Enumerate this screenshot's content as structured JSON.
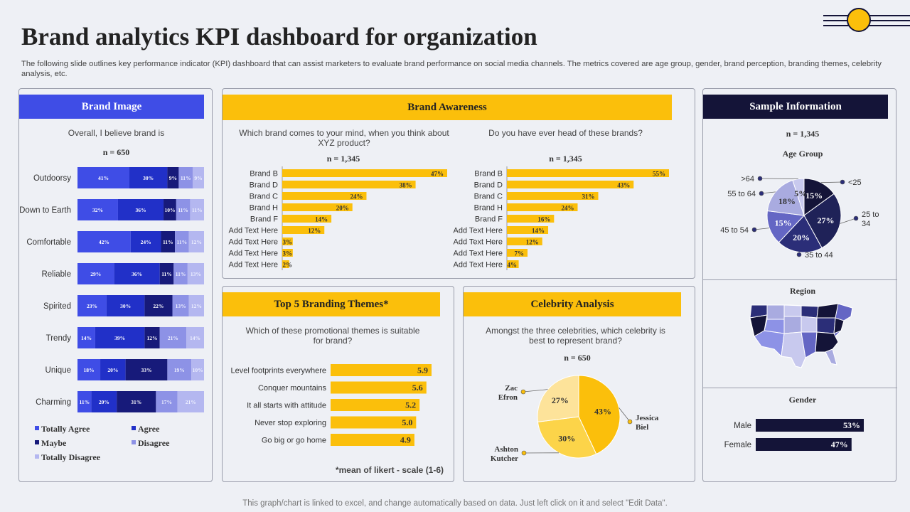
{
  "title": "Brand analytics KPI dashboard for organization",
  "subtitle": "The following slide outlines key performance indicator (KPI) dashboard that can assist marketers to evaluate brand performance on social media channels. The metrics covered are age group, gender, brand perception, branding themes, celebrity analysis, etc.",
  "footer": "This graph/chart is linked to excel, and change automatically based on data. Just left click on it and select \"Edit Data\".",
  "colors": {
    "blue": "#3f4de6",
    "yellow": "#fbbf0b",
    "navy": "#141438",
    "bg": "#eef0f5"
  },
  "brand_image": {
    "header": "Brand Image",
    "question": "Overall, I believe brand is",
    "n": "n = 650",
    "legend": [
      "Totally Agree",
      "Agree",
      "Maybe",
      "Disagree",
      "Totally Disagree"
    ]
  },
  "brand_awareness": {
    "header": "Brand Awareness",
    "q1": "Which brand comes to your mind, when you think about XYZ  product?",
    "q2": "Do you have ever head of these brands?",
    "n1": "n = 1,345",
    "n2": "n = 1,345"
  },
  "themes": {
    "header": "Top 5 Branding Themes*",
    "question": "Which of these promotional themes is suitable for brand?",
    "note": "*mean of likert - scale (1-6)"
  },
  "celebrity": {
    "header": "Celebrity Analysis",
    "question": "Amongst the three celebrities, which celebrity is best to represent brand?",
    "n": "n = 650"
  },
  "sample": {
    "header": "Sample Information",
    "n": "n = 1,345",
    "age_title": "Age Group",
    "region_title": "Region",
    "gender_title": "Gender"
  },
  "chart_data": [
    {
      "id": "brand_image",
      "type": "bar",
      "stacked": true,
      "orientation": "horizontal",
      "title": "Overall, I believe brand is",
      "categories": [
        "Outdoorsy",
        "Down to Earth",
        "Comfortable",
        "Reliable",
        "Spirited",
        "Trendy",
        "Unique",
        "Charming"
      ],
      "series": [
        {
          "name": "Totally Agree",
          "color": "#3f4de6",
          "values": [
            41,
            32,
            42,
            29,
            23,
            14,
            18,
            11
          ]
        },
        {
          "name": "Agree",
          "color": "#2130c8",
          "values": [
            30,
            36,
            24,
            36,
            30,
            39,
            20,
            20
          ]
        },
        {
          "name": "Maybe",
          "color": "#171a7a",
          "values": [
            9,
            10,
            11,
            11,
            22,
            12,
            33,
            31
          ]
        },
        {
          "name": "Disagree",
          "color": "#8d92e6",
          "values": [
            11,
            11,
            11,
            11,
            13,
            21,
            19,
            17
          ]
        },
        {
          "name": "Totally Disagree",
          "color": "#b4b7f0",
          "values": [
            9,
            11,
            12,
            13,
            12,
            14,
            10,
            21
          ]
        }
      ]
    },
    {
      "id": "awareness_top",
      "type": "bar",
      "orientation": "horizontal",
      "title": "Which brand comes to your mind, when you think about XYZ  product?",
      "categories": [
        "Brand B",
        "Brand D",
        "Brand C",
        "Brand H",
        "Brand F",
        "Add Text Here",
        "Add Text Here",
        "Add Text Here",
        "Add Text Here"
      ],
      "values": [
        47,
        38,
        24,
        20,
        14,
        12,
        3,
        3,
        2
      ],
      "unit": "%",
      "color": "#fbbf0b",
      "xlim": [
        0,
        47
      ]
    },
    {
      "id": "awareness_heard",
      "type": "bar",
      "orientation": "horizontal",
      "title": "Do you have ever head of these brands?",
      "categories": [
        "Brand B",
        "Brand D",
        "Brand C",
        "Brand H",
        "Brand F",
        "Add Text Here",
        "Add Text Here",
        "Add Text Here",
        "Add Text Here"
      ],
      "values": [
        55,
        43,
        31,
        24,
        16,
        14,
        12,
        7,
        4
      ],
      "unit": "%",
      "color": "#fbbf0b",
      "xlim": [
        0,
        55
      ]
    },
    {
      "id": "themes",
      "type": "bar",
      "orientation": "horizontal",
      "title": "Which of these promotional themes is suitable for brand?",
      "categories": [
        "Level footprints everywhere",
        "Conquer mountains",
        "It all starts with attitude",
        "Never stop exploring",
        "Go big or go home"
      ],
      "values": [
        5.9,
        5.6,
        5.2,
        5.0,
        4.9
      ],
      "color": "#fbbf0b",
      "xlim": [
        0,
        5.9
      ]
    },
    {
      "id": "celebrity",
      "type": "pie",
      "title": "Amongst the three celebrities, which celebrity is best to represent brand?",
      "labels": [
        "Jessica Biel",
        "Ashton Kutcher",
        "Zac Efron"
      ],
      "values": [
        43,
        30,
        27
      ],
      "colors": [
        "#fbbf0b",
        "#fcd449",
        "#fde39a"
      ]
    },
    {
      "id": "age_group",
      "type": "pie",
      "title": "Age Group",
      "labels": [
        "<25",
        "25 to 34",
        "35 to 44",
        "45 to 54",
        "55 to 64",
        ">64"
      ],
      "values": [
        15,
        27,
        20,
        15,
        18,
        5
      ],
      "colors": [
        "#141438",
        "#1f2258",
        "#2b2e78",
        "#6466c4",
        "#a9abe0",
        "#c8c9ee"
      ]
    },
    {
      "id": "gender",
      "type": "bar",
      "orientation": "horizontal",
      "title": "Gender",
      "categories": [
        "Male",
        "Female"
      ],
      "values": [
        53,
        47
      ],
      "unit": "%",
      "color": "#141438",
      "xlim": [
        0,
        53
      ]
    }
  ]
}
